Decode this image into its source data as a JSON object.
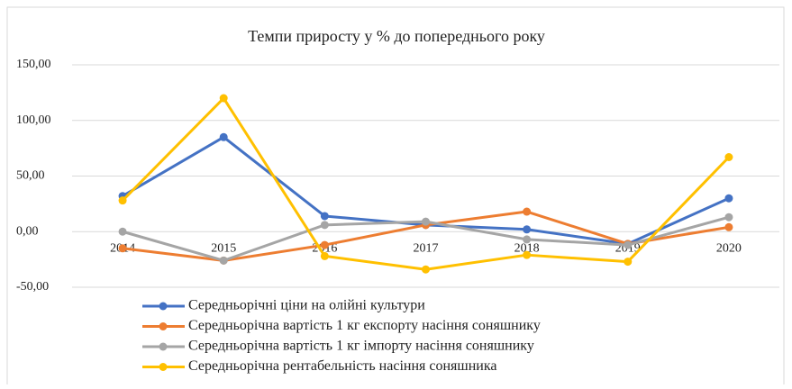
{
  "chart_data": {
    "type": "line",
    "title": "Темпи приросту у % до попереднього року",
    "categories": [
      "2014",
      "2015",
      "2016",
      "2017",
      "2018",
      "2019",
      "2020"
    ],
    "series": [
      {
        "name": "Середньорічні ціни на олійні культури",
        "color": "#4472c4",
        "values": [
          32,
          85,
          14,
          6,
          2,
          -11,
          30
        ]
      },
      {
        "name": "Середньорічна вартість 1 кг експорту насіння соняшнику",
        "color": "#ed7d31",
        "values": [
          -15,
          -26,
          -12,
          6,
          18,
          -11,
          4
        ]
      },
      {
        "name": "Середньорічна вартість 1 кг імпорту насіння соняшнику",
        "color": "#a5a5a5",
        "values": [
          0,
          -26,
          6,
          9,
          -7,
          -12,
          13
        ]
      },
      {
        "name": "Середньорічна рентабельність насіння соняшника",
        "color": "#ffc000",
        "values": [
          28,
          120,
          -22,
          -34,
          -21,
          -27,
          67
        ]
      }
    ],
    "ylim": [
      -50,
      150
    ],
    "yticks": [
      {
        "value": -50,
        "label": "-50,00"
      },
      {
        "value": 0,
        "label": "0,00"
      },
      {
        "value": 50,
        "label": "50,00"
      },
      {
        "value": 100,
        "label": "100,00"
      },
      {
        "value": 150,
        "label": "150,00"
      }
    ],
    "grid": true
  }
}
